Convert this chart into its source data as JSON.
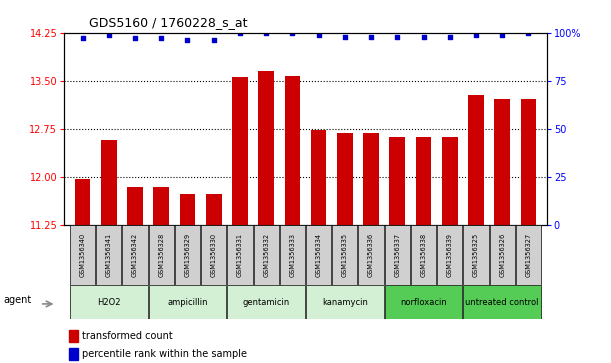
{
  "title": "GDS5160 / 1760228_s_at",
  "samples": [
    "GSM1356340",
    "GSM1356341",
    "GSM1356342",
    "GSM1356328",
    "GSM1356329",
    "GSM1356330",
    "GSM1356331",
    "GSM1356332",
    "GSM1356333",
    "GSM1356334",
    "GSM1356335",
    "GSM1356336",
    "GSM1356337",
    "GSM1356338",
    "GSM1356339",
    "GSM1356325",
    "GSM1356326",
    "GSM1356327"
  ],
  "bar_values": [
    11.97,
    12.58,
    11.85,
    11.84,
    11.74,
    11.73,
    13.56,
    13.65,
    13.57,
    12.73,
    12.69,
    12.69,
    12.62,
    12.63,
    12.63,
    13.28,
    13.22,
    13.22
  ],
  "dot_values": [
    97,
    99,
    97,
    97,
    96,
    96,
    100,
    100,
    100,
    99,
    98,
    98,
    98,
    98,
    98,
    99,
    99,
    100
  ],
  "groups": [
    {
      "label": "H2O2",
      "start": 0,
      "end": 3,
      "color": "#d4f0d4"
    },
    {
      "label": "ampicillin",
      "start": 3,
      "end": 6,
      "color": "#d4f0d4"
    },
    {
      "label": "gentamicin",
      "start": 6,
      "end": 9,
      "color": "#d4f0d4"
    },
    {
      "label": "kanamycin",
      "start": 9,
      "end": 12,
      "color": "#d4f0d4"
    },
    {
      "label": "norfloxacin",
      "start": 12,
      "end": 15,
      "color": "#55cc55"
    },
    {
      "label": "untreated control",
      "start": 15,
      "end": 18,
      "color": "#55cc55"
    }
  ],
  "ylim_left": [
    11.25,
    14.25
  ],
  "ylim_right": [
    0,
    100
  ],
  "yticks_left": [
    11.25,
    12.0,
    12.75,
    13.5,
    14.25
  ],
  "yticks_right": [
    0,
    25,
    50,
    75,
    100
  ],
  "bar_color": "#cc0000",
  "dot_color": "#0000cc",
  "grid_color": "#000000",
  "bg_color": "#ffffff",
  "sample_box_color": "#d0d0d0",
  "agent_label": "agent",
  "legend_bar": "transformed count",
  "legend_dot": "percentile rank within the sample"
}
